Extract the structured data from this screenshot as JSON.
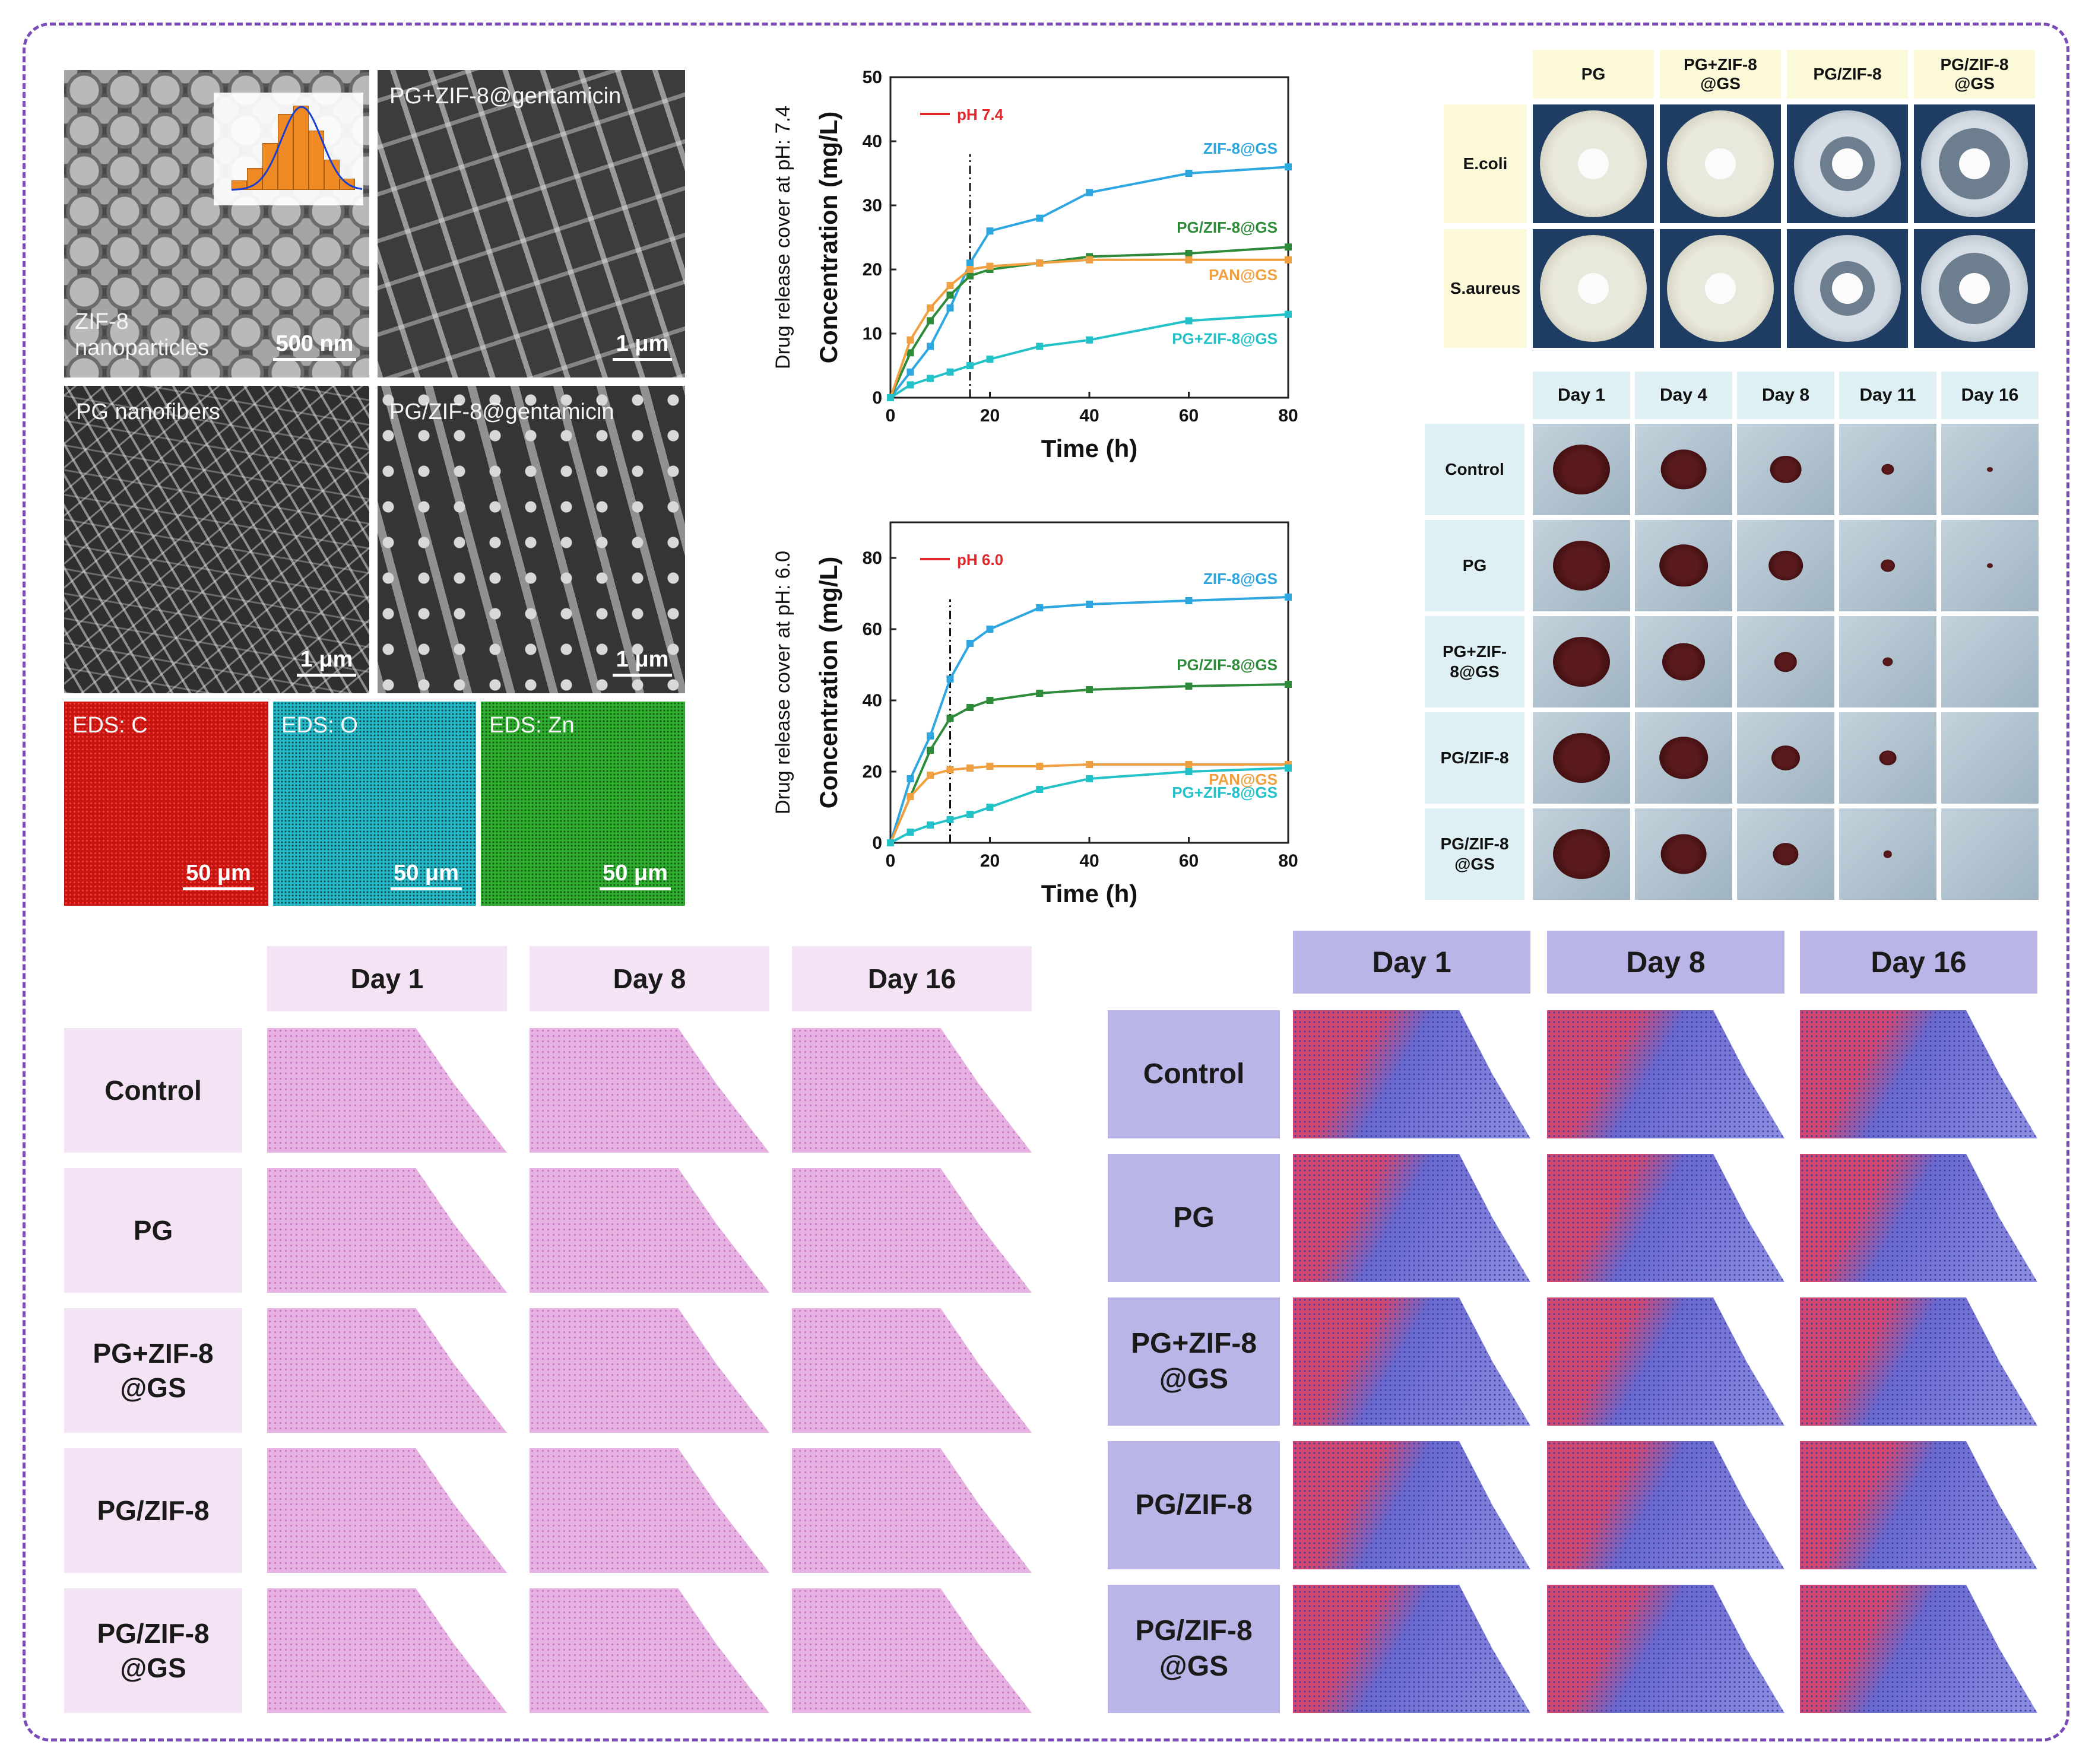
{
  "sem": {
    "panels": [
      {
        "label_line1": "ZIF-8",
        "label_line2": "nanoparticles",
        "scale": "500 nm"
      },
      {
        "label_line1": "PG+ZIF-8@gentamicin",
        "label_line2": "",
        "scale": "1 μm"
      },
      {
        "label_line1": "PG nanofibers",
        "label_line2": "",
        "scale": "1 μm"
      },
      {
        "label_line1": "PG/ZIF-8@gentamicin",
        "label_line2": "",
        "scale": "1 μm"
      }
    ],
    "eds": [
      {
        "label": "EDS: C",
        "scale": "50 μm",
        "color": "#c8140e"
      },
      {
        "label": "EDS: O",
        "scale": "50 μm",
        "color": "#22b9c8"
      },
      {
        "label": "EDS: Zn",
        "scale": "50 μm",
        "color": "#2fae2f"
      }
    ]
  },
  "chart_data": [
    {
      "type": "line",
      "ylabel_outer": "Drug release cover at pH: 7.4",
      "ylabel": "Concentration (mg/L)",
      "xlabel": "Time (h)",
      "xlim": [
        0,
        80
      ],
      "ylim": [
        0,
        50
      ],
      "xticks": [
        "0",
        "20",
        "40",
        "60",
        "80"
      ],
      "yticks": [
        "0",
        "10",
        "20",
        "30",
        "40",
        "50"
      ],
      "legend": "pH 7.4",
      "vline_x": 16,
      "series": [
        {
          "name": "ZIF-8@GS",
          "color": "#2ea6e0",
          "x": [
            0,
            4,
            8,
            12,
            16,
            20,
            30,
            40,
            60,
            80
          ],
          "values": [
            0,
            4,
            8,
            14,
            21,
            26,
            28,
            32,
            35,
            36
          ]
        },
        {
          "name": "PG/ZIF-8@GS",
          "color": "#2e8b3a",
          "x": [
            0,
            4,
            8,
            12,
            16,
            20,
            30,
            40,
            60,
            80
          ],
          "values": [
            0,
            7,
            12,
            16,
            19,
            20,
            21,
            22,
            22.5,
            23.5
          ]
        },
        {
          "name": "PAN@GS",
          "color": "#f0a040",
          "x": [
            0,
            4,
            8,
            12,
            16,
            20,
            30,
            40,
            60,
            80
          ],
          "values": [
            0,
            9,
            14,
            17.5,
            20,
            20.5,
            21,
            21.5,
            21.5,
            21.5
          ]
        },
        {
          "name": "PG+ZIF-8@GS",
          "color": "#22c2c8",
          "x": [
            0,
            4,
            8,
            12,
            16,
            20,
            30,
            40,
            60,
            80
          ],
          "values": [
            0,
            2,
            3,
            4,
            5,
            6,
            8,
            9,
            12,
            13
          ]
        }
      ]
    },
    {
      "type": "line",
      "ylabel_outer": "Drug release cover at pH: 6.0",
      "ylabel": "Concentration (mg/L)",
      "xlabel": "Time (h)",
      "xlim": [
        0,
        80
      ],
      "ylim": [
        0,
        90
      ],
      "xticks": [
        "0",
        "20",
        "40",
        "60",
        "80"
      ],
      "yticks": [
        "0",
        "20",
        "40",
        "60",
        "80"
      ],
      "legend": "pH 6.0",
      "vline_x": 12,
      "series": [
        {
          "name": "ZIF-8@GS",
          "color": "#2ea6e0",
          "x": [
            0,
            4,
            8,
            12,
            16,
            20,
            30,
            40,
            60,
            80
          ],
          "values": [
            0,
            18,
            30,
            46,
            56,
            60,
            66,
            67,
            68,
            69
          ]
        },
        {
          "name": "PG/ZIF-8@GS",
          "color": "#2e8b3a",
          "x": [
            0,
            4,
            8,
            12,
            16,
            20,
            30,
            40,
            60,
            80
          ],
          "values": [
            0,
            13,
            26,
            35,
            38,
            40,
            42,
            43,
            44,
            44.5
          ]
        },
        {
          "name": "PAN@GS",
          "color": "#f0a040",
          "x": [
            0,
            4,
            8,
            12,
            16,
            20,
            30,
            40,
            60,
            80
          ],
          "values": [
            0,
            13,
            19,
            20.5,
            21,
            21.5,
            21.5,
            22,
            22,
            22
          ]
        },
        {
          "name": "PG+ZIF-8@GS",
          "color": "#22c2c8",
          "x": [
            0,
            4,
            8,
            12,
            16,
            20,
            30,
            40,
            60,
            80
          ],
          "values": [
            0,
            3,
            5,
            6.5,
            8,
            10,
            15,
            18,
            20,
            21
          ]
        }
      ]
    }
  ],
  "antibacterial": {
    "columns": [
      "PG",
      "PG+ZIF-8\n@GS",
      "PG/ZIF-8",
      "PG/ZIF-8\n@GS"
    ],
    "rows": [
      "E.coli",
      "S.aureus"
    ]
  },
  "wound": {
    "columns": [
      "Day 1",
      "Day 4",
      "Day 8",
      "Day 11",
      "Day 16"
    ],
    "rows": [
      "Control",
      "PG",
      "PG+ZIF-\n8@GS",
      "PG/ZIF-8",
      "PG/ZIF-8\n@GS"
    ],
    "wound_fraction": [
      [
        1.0,
        0.8,
        0.55,
        0.22,
        0.08
      ],
      [
        1.0,
        0.85,
        0.6,
        0.25,
        0.05
      ],
      [
        1.0,
        0.75,
        0.4,
        0.18,
        0.0
      ],
      [
        1.0,
        0.85,
        0.5,
        0.3,
        0.0
      ],
      [
        1.0,
        0.8,
        0.45,
        0.15,
        0.0
      ]
    ]
  },
  "he": {
    "columns": [
      "Day 1",
      "Day 8",
      "Day 16"
    ],
    "rows": [
      "Control",
      "PG",
      "PG+ZIF-8\n@GS",
      "PG/ZIF-8",
      "PG/ZIF-8\n@GS"
    ]
  },
  "masson": {
    "columns": [
      "Day 1",
      "Day 8",
      "Day 16"
    ],
    "rows": [
      "Control",
      "PG",
      "PG+ZIF-8\n@GS",
      "PG/ZIF-8",
      "PG/ZIF-8\n@GS"
    ]
  }
}
